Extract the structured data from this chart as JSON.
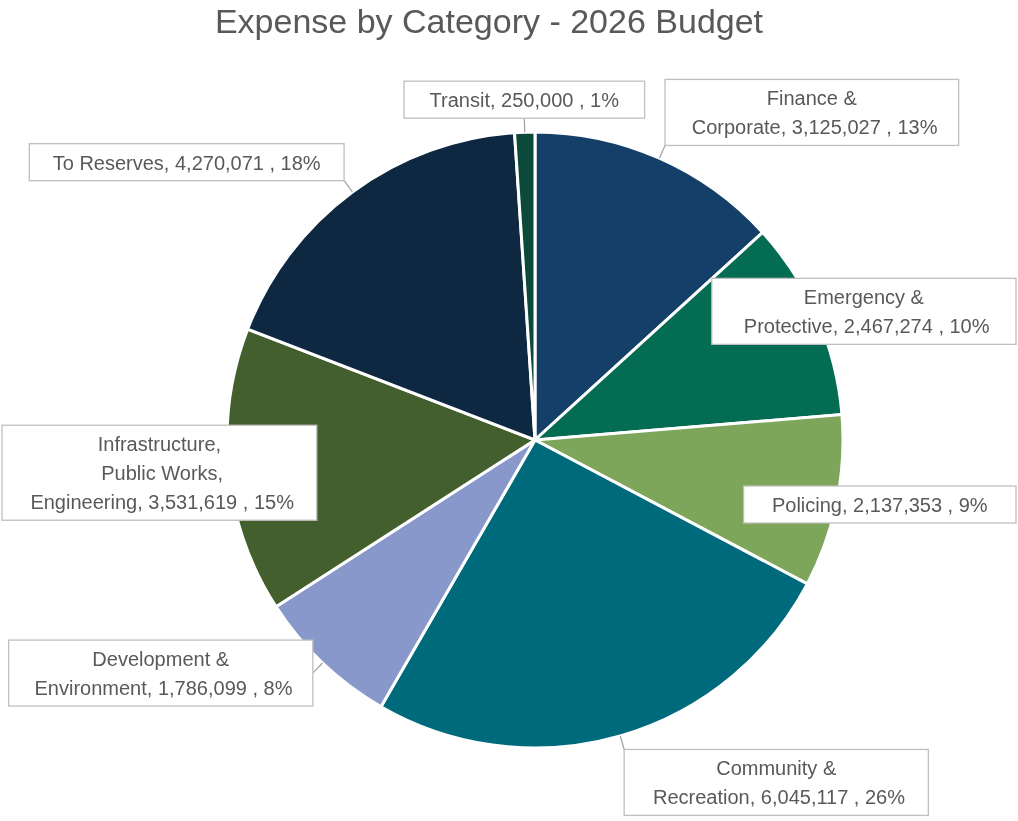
{
  "chart_data": {
    "type": "pie",
    "title": "Expense by Category - 2026 Budget",
    "categories": [
      "Finance & Corporate",
      "Emergency & Protective",
      "Policing",
      "Community & Recreation",
      "Development & Environment",
      "Infrastructure, Public Works, Engineering",
      "To Reserves",
      "Transit"
    ],
    "values": [
      3125027,
      2467274,
      2137353,
      6045117,
      1786099,
      3531619,
      4270071,
      250000
    ],
    "value_labels": [
      "3,125,027 , 13%",
      "2,467,274 , 10%",
      "2,137,353 , 9%",
      "6,045,117 , 26%",
      "1,786,099 , 8%",
      "3,531,619 , 15%",
      "4,270,071 , 18%",
      "250,000 , 1%"
    ],
    "colors": [
      "#133f68",
      "#046c52",
      "#7ea65a",
      "#006a7d",
      "#8898ca",
      "#435f2e",
      "#0d2840",
      "#0b4a3a"
    ]
  }
}
